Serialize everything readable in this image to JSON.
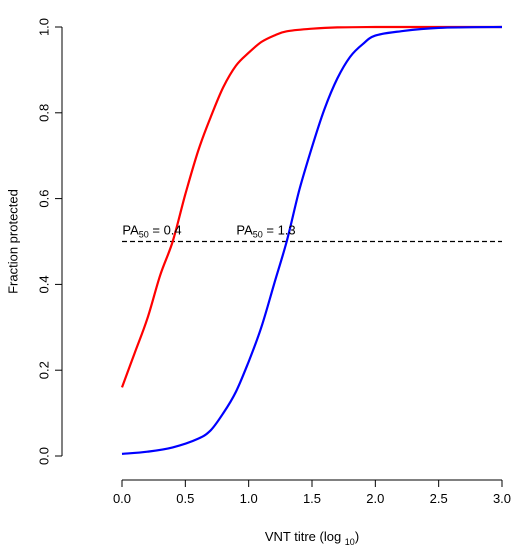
{
  "chart_data": {
    "type": "line",
    "xlabel": "VNT titre (log ",
    "xlabel_sub": "10",
    "xlabel_tail": ")",
    "ylabel": "Fraction protected",
    "xlim": [
      0,
      3
    ],
    "ylim": [
      0,
      1
    ],
    "x_ticks": [
      0.0,
      0.5,
      1.0,
      1.5,
      2.0,
      2.5,
      3.0
    ],
    "x_tick_labels": [
      "0.0",
      "0.5",
      "1.0",
      "1.5",
      "2.0",
      "2.5",
      "3.0"
    ],
    "y_ticks": [
      0.0,
      0.2,
      0.4,
      0.6,
      0.8,
      1.0
    ],
    "y_tick_labels": [
      "0.0",
      "0.2",
      "0.4",
      "0.6",
      "0.8",
      "1.0"
    ],
    "grid": false,
    "series": [
      {
        "color": "#ff0000",
        "points": [
          [
            0.0,
            0.16
          ],
          [
            0.1,
            0.24
          ],
          [
            0.2,
            0.32
          ],
          [
            0.3,
            0.42
          ],
          [
            0.4,
            0.5
          ],
          [
            0.5,
            0.61
          ],
          [
            0.6,
            0.71
          ],
          [
            0.7,
            0.79
          ],
          [
            0.8,
            0.86
          ],
          [
            0.9,
            0.91
          ],
          [
            1.0,
            0.94
          ],
          [
            1.1,
            0.965
          ],
          [
            1.2,
            0.98
          ],
          [
            1.3,
            0.99
          ],
          [
            1.5,
            0.996
          ],
          [
            1.7,
            0.999
          ],
          [
            2.0,
            1.0
          ],
          [
            2.5,
            1.0
          ],
          [
            3.0,
            1.0
          ]
        ]
      },
      {
        "color": "#0000ff",
        "points": [
          [
            0.0,
            0.005
          ],
          [
            0.2,
            0.01
          ],
          [
            0.4,
            0.02
          ],
          [
            0.6,
            0.04
          ],
          [
            0.7,
            0.06
          ],
          [
            0.8,
            0.1
          ],
          [
            0.9,
            0.15
          ],
          [
            1.0,
            0.22
          ],
          [
            1.1,
            0.3
          ],
          [
            1.2,
            0.4
          ],
          [
            1.3,
            0.5
          ],
          [
            1.4,
            0.62
          ],
          [
            1.5,
            0.72
          ],
          [
            1.6,
            0.81
          ],
          [
            1.7,
            0.88
          ],
          [
            1.8,
            0.93
          ],
          [
            1.9,
            0.96
          ],
          [
            2.0,
            0.98
          ],
          [
            2.2,
            0.99
          ],
          [
            2.5,
            0.998
          ],
          [
            3.0,
            1.0
          ]
        ]
      }
    ],
    "reference_line": {
      "y": 0.5,
      "x_from": 0.0,
      "x_to": 3.0,
      "style": "dashed",
      "color": "#000000"
    },
    "annotations": [
      {
        "prefix": "PA",
        "sub": "50",
        "suffix": " = 0.4",
        "x": 0.4,
        "y": 0.5
      },
      {
        "prefix": "PA",
        "sub": "50",
        "suffix": " = 1.3",
        "x": 1.3,
        "y": 0.5
      }
    ]
  }
}
